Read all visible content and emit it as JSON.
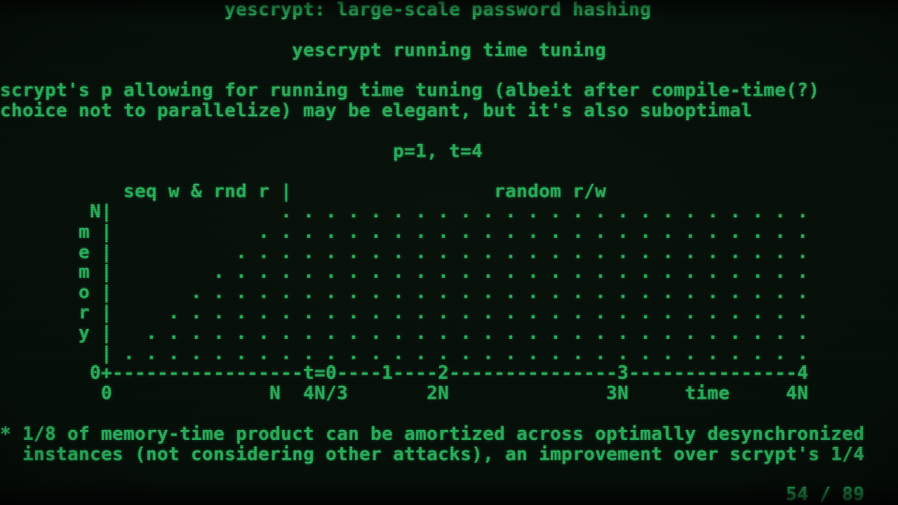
{
  "slide": {
    "title": "yescrypt: large-scale password hashing",
    "subtitle": "yescrypt running time tuning",
    "body": [
      "scrypt's p allowing for running time tuning (albeit after compile-time(?)",
      "choice not to parallelize) may be elegant, but it's also suboptimal"
    ],
    "parameters": "p=1, t=4",
    "footnote": [
      "* 1/8 of memory-time product can be amortized across optimally desynchronized",
      "  instances (not considering other attacks), an improvement over scrypt's 1/4"
    ],
    "page_indicator": "54 / 89"
  },
  "chart": {
    "left_phase_label": "seq w & rnd r",
    "right_phase_label": "random r/w",
    "y_max_label": "N",
    "y_axis_word": "memory",
    "origin_label": "0",
    "t_axis_marks": [
      "t=0",
      "1",
      "2",
      "3",
      "4"
    ],
    "x_tick_labels": [
      "0",
      "N",
      "4N/3",
      "2N",
      "3N",
      "time",
      "4N"
    ]
  },
  "colors": {
    "text_green": "#2ec868",
    "background": "#061009"
  },
  "screen": {
    "lines": [
      "                    yescrypt: large-scale password hashing",
      "",
      "                          yescrypt running time tuning",
      "",
      "scrypt's p allowing for running time tuning (albeit after compile-time(?)",
      "choice not to parallelize) may be elegant, but it's also suboptimal",
      "",
      "                                   p=1, t=4",
      "",
      "           seq w & rnd r |                  random r/w",
      {
        "pre": "        N|",
        "gap": 15,
        "dots": 24
      },
      {
        "pre": "       m |",
        "gap": 13,
        "dots": 25
      },
      {
        "pre": "       e |",
        "gap": 11,
        "dots": 26
      },
      {
        "pre": "       m |",
        "gap": 9,
        "dots": 27
      },
      {
        "pre": "       o |",
        "gap": 7,
        "dots": 28
      },
      {
        "pre": "       r |",
        "gap": 5,
        "dots": 29
      },
      {
        "pre": "       y |",
        "gap": 3,
        "dots": 30
      },
      {
        "pre": "         |",
        "gap": 1,
        "dots": 31
      },
      "        0+-----------------t=0----1----2---------------3---------------4",
      "         0              N  4N/3       2N              3N     time     4N",
      "",
      "* 1/8 of memory-time product can be amortized across optimally desynchronized",
      "  instances (not considering other attacks), an improvement over scrypt's 1/4",
      "",
      "                                                                      54 / 89"
    ]
  }
}
